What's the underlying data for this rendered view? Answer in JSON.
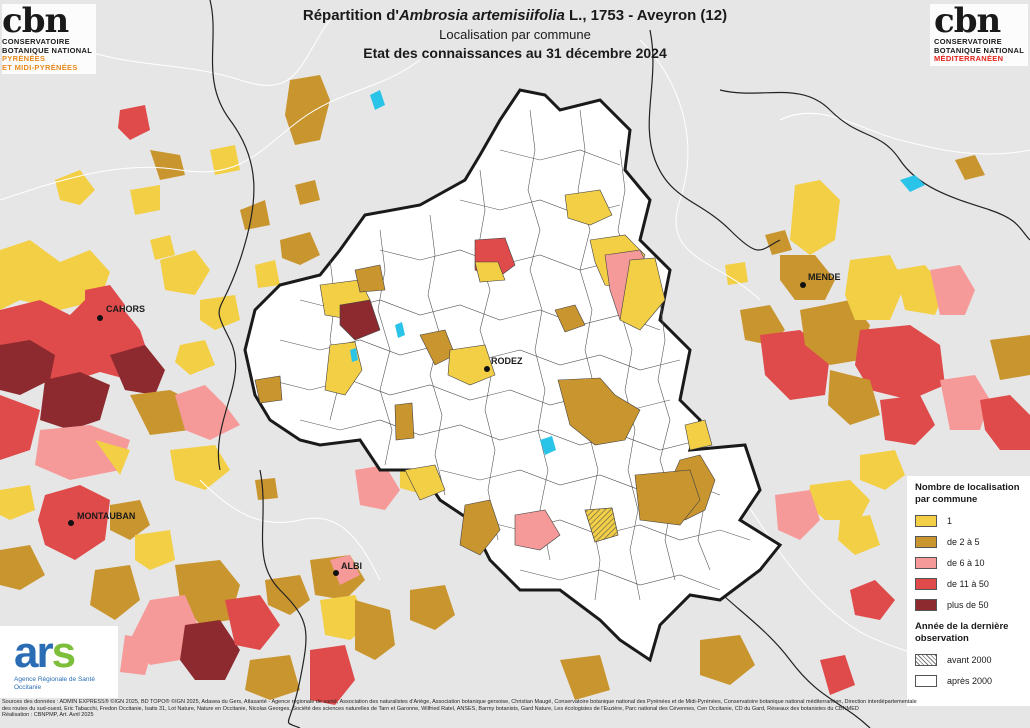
{
  "header": {
    "title_before": "Répartition d'",
    "title_species": "Ambrosia artemisiifolia",
    "title_after": " L., 1753 - Aveyron (12)",
    "subtitle": "Localisation par commune",
    "subtitle2": "Etat des connaissances au 31 décembre 2024"
  },
  "logos": {
    "left": {
      "mark": "cbn",
      "line1": "CONSERVATOIRE",
      "line2": "BOTANIQUE NATIONAL",
      "line3": "PYRÉNÉES",
      "line4": "ET MIDI-PYRÉNÉES"
    },
    "right": {
      "mark": "cbn",
      "line1": "CONSERVATOIRE",
      "line2": "BOTANIQUE NATIONAL",
      "line3": "MÉDITERRANÉEN"
    },
    "ars": {
      "mark_a": "ar",
      "mark_s": "s",
      "line1": "Agence Régionale de Santé",
      "line2": "Occitanie"
    }
  },
  "towns": {
    "cahors": "CAHORS",
    "rodez": "RODEZ",
    "mende": "MENDE",
    "montauban": "MONTAUBAN",
    "albi": "ALBI"
  },
  "legend": {
    "title1": "Nombre de localisation par commune",
    "classes": [
      {
        "label": "1",
        "color": "#f3cf45"
      },
      {
        "label": "de 2 à 5",
        "color": "#c9952e"
      },
      {
        "label": "de 6 à 10",
        "color": "#f59a98"
      },
      {
        "label": "de 11 à 50",
        "color": "#df4a4a"
      },
      {
        "label": "plus de 50",
        "color": "#8c2a30"
      }
    ],
    "title2": "Année de la dernière observation",
    "obs": [
      {
        "label": "avant 2000"
      },
      {
        "label": "après 2000"
      }
    ]
  },
  "colors": {
    "background": "#e6e6e6",
    "aveyron_fill": "#ffffff",
    "water": "#29c4e8",
    "dept_border": "#1a1a1a",
    "commune_border": "#333333"
  },
  "sources": {
    "line1": "Sources des données : ADMIN EXPRESS® ©IGN 2025, BD TOPO® ©IGN 2025, Adasea du Gers, Atlasanté - Agence régionale de santé, Association des naturalistes d'Ariège, Association botanique gersoise, Christian Maugé, Conservatoire botanique national des Pyrénées et de Midi-Pyrénées, Conservatoire botanique national méditerranéen, Direction interdépartementale",
    "line2": "des routes du sud-ouest, Eric Tabacchi, Fredon Occitanie, Isatis 31, Lot Nature, Nature en Occitanie, Nicolas Georges, Société des sciences naturelles de Tarn et Garonne, Wilfried Ratel, ANSES, Barmy botanists, Gard Nature, Les écologistes de l'Euzière, Parc national des Cévennes, Cen Occitanie, CD du Gard, Réseaux des botanistes du CBNMED",
    "line3": "Réalisation : CBNPMP, Art. Avril 2025"
  }
}
